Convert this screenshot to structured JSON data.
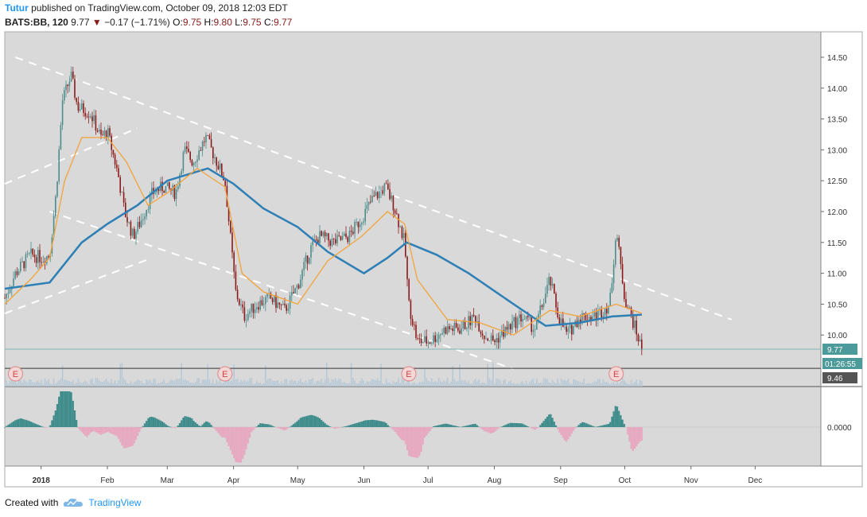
{
  "header": {
    "author": "Tutur",
    "published_text": "published on TradingView.com, October 09, 2018 12:03 EDT",
    "symbol": "BATS:BB, 120",
    "last": "9.77",
    "arrow": "▼",
    "change": "−0.17 (−1.71%)",
    "o_label": "O:",
    "o": "9.75",
    "h_label": "H:",
    "h": "9.80",
    "l_label": "L:",
    "l": "9.75",
    "c_label": "C:",
    "c": "9.77"
  },
  "price_axis": {
    "ticks": [
      "14.50",
      "14.00",
      "13.50",
      "13.00",
      "12.50",
      "12.00",
      "11.50",
      "11.00",
      "10.50",
      "10.00"
    ],
    "last_price_label": "9.77",
    "countdown_label": "01:26:55",
    "level_label": "9.46"
  },
  "oscillator_axis": {
    "zero_label": "0.0000"
  },
  "time_axis": {
    "labels": [
      "2018",
      "Feb",
      "Mar",
      "Apr",
      "May",
      "Jun",
      "Jul",
      "Aug",
      "Sep",
      "Oct",
      "Nov",
      "Dec"
    ]
  },
  "earnings_marker": "E",
  "footer": {
    "created_with": "Created with",
    "brand": "TradingView"
  },
  "colors": {
    "background": "#d9d9d9",
    "candle_up": "#4d8c8a",
    "candle_down": "#8b1a1a",
    "ma_slow": "#2d7fb5",
    "ma_fast": "#f2a33a",
    "trendline": "#ffffff",
    "osc_up": "#3f8c8c",
    "osc_down": "#e6a9c0"
  },
  "chart_data": {
    "type": "candlestick",
    "interval": "120",
    "ylim": [
      9.5,
      14.7
    ],
    "x_range": [
      "2017-12-15",
      "2018-12-31"
    ],
    "close_path": [
      [
        "2017-12-15",
        10.6
      ],
      [
        "2017-12-20",
        11.0
      ],
      [
        "2017-12-27",
        11.3
      ],
      [
        "2018-01-02",
        11.25
      ],
      [
        "2018-01-05",
        11.3
      ],
      [
        "2018-01-08",
        12.3
      ],
      [
        "2018-01-11",
        13.8
      ],
      [
        "2018-01-15",
        14.2
      ],
      [
        "2018-01-18",
        13.7
      ],
      [
        "2018-01-24",
        13.6
      ],
      [
        "2018-01-29",
        13.2
      ],
      [
        "2018-02-01",
        13.3
      ],
      [
        "2018-02-06",
        12.6
      ],
      [
        "2018-02-09",
        12.0
      ],
      [
        "2018-02-13",
        11.6
      ],
      [
        "2018-02-16",
        11.8
      ],
      [
        "2018-02-22",
        12.3
      ],
      [
        "2018-02-27",
        12.4
      ],
      [
        "2018-03-05",
        12.3
      ],
      [
        "2018-03-09",
        13.0
      ],
      [
        "2018-03-13",
        12.8
      ],
      [
        "2018-03-19",
        13.2
      ],
      [
        "2018-03-23",
        12.9
      ],
      [
        "2018-03-28",
        12.5
      ],
      [
        "2018-04-02",
        10.7
      ],
      [
        "2018-04-06",
        10.3
      ],
      [
        "2018-04-12",
        10.5
      ],
      [
        "2018-04-18",
        10.6
      ],
      [
        "2018-04-25",
        10.4
      ],
      [
        "2018-05-01",
        10.8
      ],
      [
        "2018-05-07",
        11.4
      ],
      [
        "2018-05-11",
        11.6
      ],
      [
        "2018-05-18",
        11.5
      ],
      [
        "2018-05-25",
        11.6
      ],
      [
        "2018-05-31",
        11.9
      ],
      [
        "2018-06-05",
        12.2
      ],
      [
        "2018-06-11",
        12.4
      ],
      [
        "2018-06-15",
        12.1
      ],
      [
        "2018-06-20",
        11.5
      ],
      [
        "2018-06-22",
        10.5
      ],
      [
        "2018-06-26",
        9.9
      ],
      [
        "2018-07-02",
        9.9
      ],
      [
        "2018-07-09",
        10.1
      ],
      [
        "2018-07-16",
        10.1
      ],
      [
        "2018-07-23",
        10.3
      ],
      [
        "2018-07-27",
        10.0
      ],
      [
        "2018-08-01",
        9.9
      ],
      [
        "2018-08-07",
        10.1
      ],
      [
        "2018-08-14",
        10.3
      ],
      [
        "2018-08-20",
        10.1
      ],
      [
        "2018-08-27",
        10.9
      ],
      [
        "2018-08-31",
        10.3
      ],
      [
        "2018-09-04",
        10.0
      ],
      [
        "2018-09-10",
        10.3
      ],
      [
        "2018-09-17",
        10.3
      ],
      [
        "2018-09-24",
        10.5
      ],
      [
        "2018-09-27",
        11.7
      ],
      [
        "2018-10-01",
        10.6
      ],
      [
        "2018-10-05",
        10.2
      ],
      [
        "2018-10-09",
        9.77
      ]
    ],
    "series": [
      {
        "name": "",
        "type": "moving_average_slow",
        "points": [
          [
            "2017-12-15",
            10.75
          ],
          [
            "2018-01-05",
            10.85
          ],
          [
            "2018-01-20",
            11.5
          ],
          [
            "2018-02-01",
            11.8
          ],
          [
            "2018-02-15",
            12.1
          ],
          [
            "2018-03-01",
            12.5
          ],
          [
            "2018-03-20",
            12.7
          ],
          [
            "2018-04-01",
            12.45
          ],
          [
            "2018-04-15",
            12.05
          ],
          [
            "2018-05-01",
            11.75
          ],
          [
            "2018-05-15",
            11.35
          ],
          [
            "2018-06-01",
            11.0
          ],
          [
            "2018-06-12",
            11.25
          ],
          [
            "2018-06-21",
            11.5
          ],
          [
            "2018-07-05",
            11.3
          ],
          [
            "2018-07-20",
            11.0
          ],
          [
            "2018-08-10",
            10.5
          ],
          [
            "2018-08-25",
            10.15
          ],
          [
            "2018-09-10",
            10.2
          ],
          [
            "2018-09-25",
            10.3
          ],
          [
            "2018-10-09",
            10.33
          ]
        ]
      },
      {
        "name": "",
        "type": "moving_average_fast",
        "points": [
          [
            "2017-12-15",
            10.5
          ],
          [
            "2017-12-27",
            10.9
          ],
          [
            "2018-01-05",
            11.25
          ],
          [
            "2018-01-12",
            12.5
          ],
          [
            "2018-01-20",
            13.2
          ],
          [
            "2018-02-01",
            13.2
          ],
          [
            "2018-02-10",
            12.8
          ],
          [
            "2018-02-20",
            12.1
          ],
          [
            "2018-03-01",
            12.3
          ],
          [
            "2018-03-15",
            12.7
          ],
          [
            "2018-03-28",
            12.4
          ],
          [
            "2018-04-05",
            11.0
          ],
          [
            "2018-04-15",
            10.7
          ],
          [
            "2018-05-01",
            10.5
          ],
          [
            "2018-05-15",
            11.2
          ],
          [
            "2018-05-31",
            11.6
          ],
          [
            "2018-06-12",
            12.0
          ],
          [
            "2018-06-20",
            11.8
          ],
          [
            "2018-06-26",
            10.9
          ],
          [
            "2018-07-10",
            10.25
          ],
          [
            "2018-07-25",
            10.2
          ],
          [
            "2018-08-10",
            10.0
          ],
          [
            "2018-08-27",
            10.4
          ],
          [
            "2018-09-10",
            10.3
          ],
          [
            "2018-09-27",
            10.5
          ],
          [
            "2018-10-09",
            10.35
          ]
        ]
      }
    ],
    "trendlines": [
      {
        "from": [
          "2017-12-20",
          14.5
        ],
        "to": [
          "2018-11-20",
          10.25
        ]
      },
      {
        "from": [
          "2017-12-15",
          12.45
        ],
        "to": [
          "2018-02-15",
          13.35
        ]
      },
      {
        "from": [
          "2017-12-15",
          10.35
        ],
        "to": [
          "2018-02-22",
          11.25
        ]
      },
      {
        "from": [
          "2018-01-05",
          12.0
        ],
        "to": [
          "2018-08-10",
          9.45
        ]
      }
    ],
    "horizontal_lines": [
      9.77,
      9.46
    ],
    "earnings_dates": [
      "2017-12-20",
      "2018-03-28",
      "2018-06-22",
      "2018-09-27"
    ],
    "oscillator": {
      "zero_label": "0.0000"
    }
  }
}
